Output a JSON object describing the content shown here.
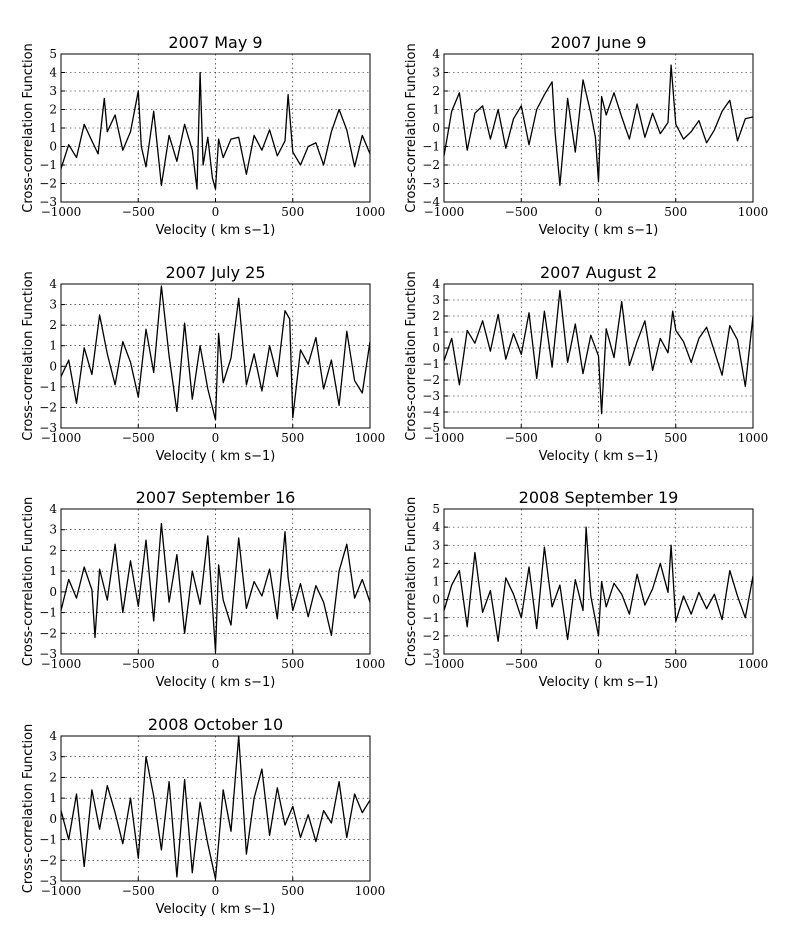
{
  "figure": {
    "common": {
      "xlabel": "Velocity ( km s−1)",
      "ylabel": "Cross-correlation Function"
    }
  },
  "chart_data": [
    {
      "type": "line",
      "title": "2007 May 9",
      "xlabel": "Velocity ( km s−1)",
      "ylabel": "Cross-correlation Function",
      "xlim": [
        -1000,
        1000
      ],
      "ylim": [
        -3,
        5
      ],
      "xticks": [
        -1000,
        -500,
        0,
        500,
        1000
      ],
      "xtick_labels": [
        "−1000",
        "−500",
        "0",
        "500",
        "1000"
      ],
      "yticks": [
        -3,
        -2,
        -1,
        0,
        1,
        2,
        3,
        4,
        5
      ],
      "grid": true,
      "series": [
        {
          "x": [
            -1000,
            -950,
            -900,
            -850,
            -800,
            -760,
            -720,
            -700,
            -650,
            -600,
            -550,
            -500,
            -480,
            -450,
            -400,
            -350,
            -300,
            -250,
            -200,
            -150,
            -120,
            -100,
            -80,
            -50,
            -20,
            0,
            20,
            50,
            100,
            150,
            200,
            250,
            300,
            350,
            400,
            450,
            470,
            500,
            550,
            600,
            650,
            700,
            750,
            800,
            850,
            900,
            950,
            1000
          ],
          "y": [
            -1.2,
            0.1,
            -0.6,
            1.2,
            0.3,
            -0.4,
            2.6,
            0.8,
            1.7,
            -0.2,
            0.8,
            3.0,
            0.0,
            -1.1,
            1.9,
            -2.1,
            0.6,
            -0.8,
            1.2,
            -0.2,
            -2.3,
            4.0,
            -1.0,
            0.5,
            -1.7,
            -2.3,
            0.4,
            -0.6,
            0.4,
            0.5,
            -1.5,
            0.6,
            -0.2,
            0.9,
            -0.5,
            0.3,
            2.8,
            -0.3,
            -1.0,
            0.0,
            0.2,
            -1.0,
            0.8,
            2.0,
            0.9,
            -1.1,
            0.6,
            -0.4
          ]
        }
      ]
    },
    {
      "type": "line",
      "title": "2007 June 9",
      "xlabel": "Velocity ( km s−1)",
      "ylabel": "Cross-correlation Function",
      "xlim": [
        -1000,
        1000
      ],
      "ylim": [
        -4,
        4
      ],
      "xticks": [
        -1000,
        -500,
        0,
        500,
        1000
      ],
      "xtick_labels": [
        "−1000",
        "−500",
        "0",
        "500",
        "1000"
      ],
      "yticks": [
        -4,
        -3,
        -2,
        -1,
        0,
        1,
        2,
        3,
        4
      ],
      "grid": true,
      "series": [
        {
          "x": [
            -1000,
            -950,
            -900,
            -850,
            -800,
            -750,
            -700,
            -650,
            -600,
            -550,
            -500,
            -450,
            -400,
            -350,
            -300,
            -280,
            -250,
            -200,
            -150,
            -100,
            -50,
            -20,
            0,
            20,
            50,
            100,
            150,
            200,
            250,
            300,
            350,
            400,
            450,
            470,
            500,
            550,
            600,
            650,
            700,
            750,
            800,
            850,
            900,
            950,
            1000
          ],
          "y": [
            -1.5,
            0.9,
            1.9,
            -1.2,
            0.8,
            1.2,
            -0.6,
            1.0,
            -1.1,
            0.5,
            1.2,
            -0.9,
            1.0,
            1.8,
            2.5,
            -0.3,
            -3.1,
            1.6,
            -1.3,
            2.6,
            0.8,
            -0.5,
            -2.9,
            1.7,
            0.7,
            1.9,
            0.6,
            -0.6,
            1.3,
            -0.5,
            0.8,
            -0.3,
            0.3,
            3.4,
            0.2,
            -0.6,
            -0.2,
            0.4,
            -0.8,
            -0.1,
            0.9,
            1.5,
            -0.7,
            0.5,
            0.6
          ]
        }
      ]
    },
    {
      "type": "line",
      "title": "2007 July 25",
      "xlabel": "Velocity ( km s−1)",
      "ylabel": "Cross-correlation Function",
      "xlim": [
        -1000,
        1000
      ],
      "ylim": [
        -3,
        4
      ],
      "xticks": [
        -1000,
        -500,
        0,
        500,
        1000
      ],
      "xtick_labels": [
        "−1000",
        "−500",
        "0",
        "500",
        "1000"
      ],
      "yticks": [
        -3,
        -2,
        -1,
        0,
        1,
        2,
        3,
        4
      ],
      "grid": true,
      "series": [
        {
          "x": [
            -1000,
            -950,
            -900,
            -850,
            -800,
            -750,
            -700,
            -650,
            -600,
            -550,
            -500,
            -450,
            -400,
            -350,
            -300,
            -250,
            -200,
            -150,
            -100,
            -50,
            0,
            20,
            50,
            100,
            150,
            200,
            250,
            300,
            350,
            400,
            450,
            480,
            500,
            550,
            600,
            650,
            700,
            750,
            800,
            850,
            900,
            950,
            1000
          ],
          "y": [
            -0.5,
            0.3,
            -1.8,
            0.9,
            -0.4,
            2.5,
            0.6,
            -0.9,
            1.2,
            0.2,
            -1.5,
            1.8,
            -0.3,
            3.9,
            0.5,
            -2.2,
            2.1,
            -1.6,
            1.0,
            -1.1,
            -2.6,
            1.6,
            -0.8,
            0.4,
            3.3,
            -0.9,
            0.6,
            -1.2,
            1.0,
            -0.5,
            2.7,
            2.3,
            -2.5,
            0.8,
            0.1,
            1.4,
            -1.1,
            0.3,
            -1.9,
            1.7,
            -0.7,
            -1.3,
            1.2
          ]
        }
      ]
    },
    {
      "type": "line",
      "title": "2007 August 2",
      "xlabel": "Velocity ( km s−1)",
      "ylabel": "Cross-correlation Function",
      "xlim": [
        -1000,
        1000
      ],
      "ylim": [
        -5,
        4
      ],
      "xticks": [
        -1000,
        -500,
        0,
        500,
        1000
      ],
      "xtick_labels": [
        "−1000",
        "−500",
        "0",
        "500",
        "1000"
      ],
      "yticks": [
        -5,
        -4,
        -3,
        -2,
        -1,
        0,
        1,
        2,
        3,
        4
      ],
      "grid": true,
      "series": [
        {
          "x": [
            -1000,
            -950,
            -900,
            -850,
            -800,
            -750,
            -700,
            -650,
            -600,
            -550,
            -500,
            -450,
            -400,
            -350,
            -300,
            -250,
            -200,
            -150,
            -100,
            -50,
            0,
            20,
            50,
            100,
            150,
            200,
            250,
            300,
            350,
            400,
            450,
            480,
            500,
            550,
            600,
            650,
            700,
            750,
            800,
            850,
            900,
            950,
            1000
          ],
          "y": [
            -0.8,
            0.6,
            -2.3,
            1.1,
            0.3,
            1.7,
            -0.2,
            2.1,
            -0.7,
            0.9,
            -0.4,
            2.2,
            -1.9,
            2.3,
            -1.2,
            3.6,
            -0.9,
            1.5,
            -1.6,
            0.8,
            -0.5,
            -4.1,
            1.2,
            -0.6,
            2.9,
            -1.1,
            0.4,
            1.7,
            -1.4,
            0.6,
            -0.3,
            2.3,
            1.1,
            0.4,
            -0.9,
            0.6,
            1.3,
            -0.2,
            -1.7,
            1.4,
            0.5,
            -2.4,
            2.0
          ]
        }
      ]
    },
    {
      "type": "line",
      "title": "2007 September 16",
      "xlabel": "Velocity ( km s−1)",
      "ylabel": "Cross-correlation Function",
      "xlim": [
        -1000,
        1000
      ],
      "ylim": [
        -3,
        4
      ],
      "xticks": [
        -1000,
        -500,
        0,
        500,
        1000
      ],
      "xtick_labels": [
        "−1000",
        "−500",
        "0",
        "500",
        "1000"
      ],
      "yticks": [
        -3,
        -2,
        -1,
        0,
        1,
        2,
        3,
        4
      ],
      "grid": true,
      "series": [
        {
          "x": [
            -1000,
            -950,
            -900,
            -850,
            -800,
            -780,
            -750,
            -700,
            -650,
            -600,
            -550,
            -500,
            -450,
            -400,
            -350,
            -300,
            -250,
            -200,
            -150,
            -100,
            -50,
            0,
            20,
            50,
            100,
            150,
            200,
            250,
            300,
            350,
            400,
            450,
            470,
            500,
            550,
            600,
            650,
            700,
            750,
            800,
            850,
            900,
            950,
            1000
          ],
          "y": [
            -0.9,
            0.6,
            -0.3,
            1.2,
            0.1,
            -2.2,
            1.1,
            -0.4,
            2.3,
            -1.0,
            1.5,
            -0.7,
            2.5,
            -1.4,
            3.3,
            -0.5,
            1.8,
            -2.0,
            1.0,
            -0.6,
            2.7,
            -2.9,
            1.3,
            -0.4,
            -1.6,
            2.6,
            -0.8,
            0.5,
            -0.2,
            1.1,
            -1.3,
            2.9,
            0.7,
            -0.9,
            0.4,
            -1.2,
            0.3,
            -0.5,
            -2.1,
            1.0,
            2.3,
            -0.3,
            0.6,
            -0.5
          ]
        }
      ]
    },
    {
      "type": "line",
      "title": "2008 September 19",
      "xlabel": "Velocity ( km s−1)",
      "ylabel": "Cross-correlation Function",
      "xlim": [
        -1000,
        1000
      ],
      "ylim": [
        -3,
        5
      ],
      "xticks": [
        -1000,
        -500,
        0,
        500,
        1000
      ],
      "xtick_labels": [
        "−1000",
        "−500",
        "0",
        "500",
        "1000"
      ],
      "yticks": [
        -3,
        -2,
        -1,
        0,
        1,
        2,
        3,
        4,
        5
      ],
      "grid": true,
      "series": [
        {
          "x": [
            -1000,
            -950,
            -900,
            -850,
            -800,
            -750,
            -700,
            -650,
            -600,
            -550,
            -500,
            -450,
            -400,
            -350,
            -300,
            -250,
            -200,
            -150,
            -100,
            -80,
            -50,
            0,
            20,
            50,
            100,
            150,
            200,
            250,
            300,
            350,
            400,
            450,
            470,
            500,
            550,
            600,
            650,
            700,
            750,
            800,
            850,
            900,
            950,
            1000
          ],
          "y": [
            -0.6,
            0.8,
            1.6,
            -1.5,
            2.6,
            -0.7,
            0.5,
            -2.3,
            1.2,
            0.3,
            -1.0,
            1.8,
            -1.6,
            2.9,
            -0.4,
            0.8,
            -2.2,
            1.1,
            -0.6,
            4.0,
            0.2,
            -2.0,
            1.0,
            -0.4,
            0.9,
            0.3,
            -0.8,
            1.4,
            -0.3,
            0.6,
            2.0,
            0.4,
            3.0,
            -1.2,
            0.2,
            -0.8,
            0.4,
            -0.5,
            0.3,
            -1.1,
            1.6,
            0.2,
            -1.0,
            1.3
          ]
        }
      ]
    },
    {
      "type": "line",
      "title": "2008 October 10",
      "xlabel": "Velocity ( km s−1)",
      "ylabel": "Cross-correlation Function",
      "xlim": [
        -1000,
        1000
      ],
      "ylim": [
        -3,
        4
      ],
      "xticks": [
        -1000,
        -500,
        0,
        500,
        1000
      ],
      "xtick_labels": [
        "−1000",
        "−500",
        "0",
        "500",
        "1000"
      ],
      "yticks": [
        -3,
        -2,
        -1,
        0,
        1,
        2,
        3,
        4
      ],
      "grid": true,
      "series": [
        {
          "x": [
            -1000,
            -950,
            -900,
            -850,
            -800,
            -750,
            -700,
            -650,
            -600,
            -550,
            -500,
            -450,
            -400,
            -350,
            -300,
            -250,
            -200,
            -150,
            -100,
            -50,
            0,
            50,
            100,
            150,
            200,
            250,
            300,
            350,
            400,
            450,
            500,
            550,
            600,
            650,
            700,
            750,
            800,
            850,
            900,
            950,
            1000
          ],
          "y": [
            0.4,
            -1.0,
            1.2,
            -2.3,
            1.4,
            -0.5,
            1.6,
            0.3,
            -1.2,
            1.0,
            -1.9,
            3.0,
            1.1,
            -1.5,
            1.8,
            -2.8,
            1.9,
            -2.6,
            0.8,
            -1.2,
            -2.9,
            1.4,
            -0.6,
            4.0,
            -1.7,
            1.0,
            2.4,
            -0.8,
            1.5,
            -0.3,
            0.6,
            -0.9,
            0.2,
            -1.1,
            0.4,
            -0.2,
            1.8,
            -0.9,
            1.2,
            0.3,
            0.9
          ]
        }
      ]
    }
  ]
}
